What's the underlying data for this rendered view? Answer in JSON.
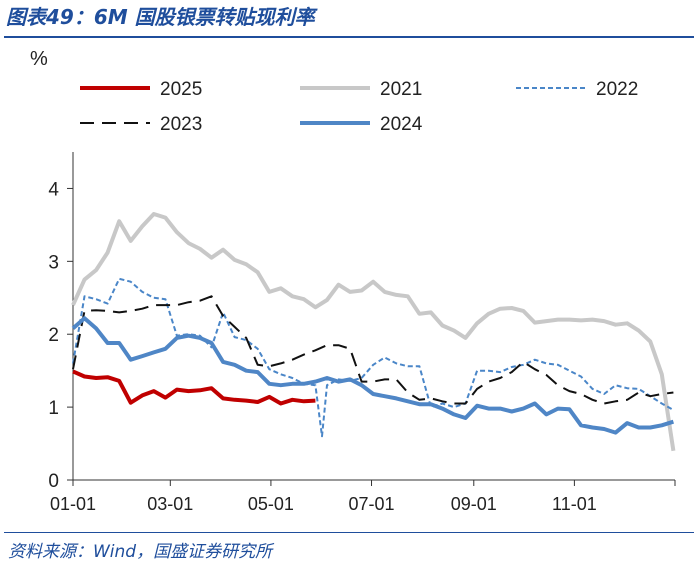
{
  "title": "图表49：6M 国股银票转贴现利率",
  "source": "资料来源：Wind，国盛证券研究所",
  "chart_data": {
    "type": "line",
    "unit": "%",
    "ylim": [
      0,
      4.5
    ],
    "yticks": [
      "0",
      "1",
      "2",
      "3",
      "4"
    ],
    "xticks": [
      "01-01",
      "03-01",
      "05-01",
      "07-01",
      "09-01",
      "11-01"
    ],
    "x_day_range": [
      0,
      365
    ],
    "legend_position": "top",
    "series": [
      {
        "name": "2025",
        "color": "#c00000",
        "dash": "solid",
        "width": 4,
        "x": [
          "01-01",
          "01-08",
          "01-15",
          "01-22",
          "01-29",
          "02-05",
          "02-12",
          "02-19",
          "02-26",
          "03-05",
          "03-12",
          "03-19",
          "03-26",
          "04-02",
          "04-09",
          "04-16",
          "04-23",
          "04-30",
          "05-07",
          "05-14",
          "05-21",
          "05-28"
        ],
        "y": [
          1.49,
          1.42,
          1.4,
          1.41,
          1.36,
          1.06,
          1.16,
          1.22,
          1.13,
          1.24,
          1.22,
          1.23,
          1.26,
          1.12,
          1.1,
          1.09,
          1.07,
          1.14,
          1.05,
          1.1,
          1.08,
          1.09
        ]
      },
      {
        "name": "2021",
        "color": "#c8c8c8",
        "dash": "solid",
        "width": 4,
        "x": [
          "01-01",
          "01-08",
          "01-15",
          "01-22",
          "01-29",
          "02-05",
          "02-12",
          "02-19",
          "02-26",
          "03-05",
          "03-12",
          "03-19",
          "03-26",
          "04-02",
          "04-09",
          "04-16",
          "04-23",
          "04-30",
          "05-07",
          "05-14",
          "05-21",
          "05-28",
          "06-04",
          "06-11",
          "06-18",
          "06-25",
          "07-02",
          "07-09",
          "07-16",
          "07-23",
          "07-30",
          "08-06",
          "08-13",
          "08-20",
          "08-27",
          "09-03",
          "09-10",
          "09-17",
          "09-24",
          "10-01",
          "10-08",
          "10-15",
          "10-22",
          "10-29",
          "11-05",
          "11-12",
          "11-19",
          "11-26",
          "12-03",
          "12-10",
          "12-17",
          "12-24",
          "12-31"
        ],
        "y": [
          2.4,
          2.75,
          2.88,
          3.12,
          3.55,
          3.28,
          3.48,
          3.65,
          3.6,
          3.4,
          3.25,
          3.17,
          3.05,
          3.16,
          3.02,
          2.96,
          2.85,
          2.58,
          2.63,
          2.52,
          2.48,
          2.37,
          2.47,
          2.68,
          2.58,
          2.6,
          2.72,
          2.58,
          2.54,
          2.52,
          2.28,
          2.3,
          2.12,
          2.05,
          1.95,
          2.15,
          2.28,
          2.35,
          2.36,
          2.32,
          2.16,
          2.18,
          2.2,
          2.2,
          2.19,
          2.2,
          2.18,
          2.13,
          2.15,
          2.05,
          1.9,
          1.45,
          0.4
        ]
      },
      {
        "name": "2022",
        "color": "#4a86c8",
        "dash": "dotted",
        "width": 2,
        "x": [
          "01-01",
          "01-08",
          "01-15",
          "01-22",
          "01-29",
          "02-05",
          "02-12",
          "02-19",
          "02-26",
          "03-05",
          "03-12",
          "03-19",
          "03-26",
          "04-02",
          "04-09",
          "04-16",
          "04-23",
          "04-30",
          "05-07",
          "05-14",
          "05-21",
          "05-28",
          "06-01",
          "06-04",
          "06-11",
          "06-18",
          "06-25",
          "07-02",
          "07-09",
          "07-16",
          "07-23",
          "07-30",
          "08-06",
          "08-13",
          "08-20",
          "08-27",
          "09-03",
          "09-10",
          "09-17",
          "09-24",
          "10-01",
          "10-08",
          "10-15",
          "10-22",
          "10-29",
          "11-05",
          "11-12",
          "11-19",
          "11-26",
          "12-03",
          "12-10",
          "12-17",
          "12-24",
          "12-31"
        ],
        "y": [
          1.6,
          2.52,
          2.48,
          2.42,
          2.76,
          2.72,
          2.58,
          2.5,
          2.48,
          1.98,
          2.0,
          1.98,
          1.82,
          2.3,
          1.96,
          1.92,
          1.8,
          1.52,
          1.45,
          1.4,
          1.32,
          1.3,
          0.6,
          1.3,
          1.38,
          1.36,
          1.4,
          1.58,
          1.68,
          1.6,
          1.56,
          1.56,
          1.0,
          1.05,
          1.0,
          1.05,
          1.5,
          1.5,
          1.48,
          1.55,
          1.58,
          1.65,
          1.6,
          1.58,
          1.5,
          1.42,
          1.25,
          1.18,
          1.3,
          1.26,
          1.25,
          1.15,
          1.05,
          0.96
        ]
      },
      {
        "name": "2023",
        "color": "#111111",
        "dash": "dashed",
        "width": 2,
        "x": [
          "01-01",
          "01-08",
          "01-15",
          "01-22",
          "01-29",
          "02-05",
          "02-12",
          "02-19",
          "02-26",
          "03-05",
          "03-12",
          "03-19",
          "03-26",
          "04-02",
          "04-09",
          "04-16",
          "04-23",
          "04-30",
          "05-07",
          "05-14",
          "05-21",
          "05-28",
          "06-04",
          "06-11",
          "06-18",
          "06-25",
          "07-02",
          "07-09",
          "07-16",
          "07-23",
          "07-30",
          "08-06",
          "08-13",
          "08-20",
          "08-27",
          "09-03",
          "09-10",
          "09-17",
          "09-24",
          "10-01",
          "10-08",
          "10-15",
          "10-22",
          "10-29",
          "11-05",
          "11-12",
          "11-19",
          "11-26",
          "12-03",
          "12-10",
          "12-17",
          "12-24",
          "12-31"
        ],
        "y": [
          1.52,
          2.32,
          2.33,
          2.32,
          2.3,
          2.32,
          2.35,
          2.4,
          2.4,
          2.4,
          2.44,
          2.46,
          2.52,
          2.25,
          2.1,
          1.95,
          1.58,
          1.56,
          1.6,
          1.65,
          1.72,
          1.78,
          1.85,
          1.85,
          1.8,
          1.35,
          1.35,
          1.38,
          1.38,
          1.2,
          1.1,
          1.12,
          1.08,
          1.05,
          1.05,
          1.25,
          1.35,
          1.4,
          1.48,
          1.62,
          1.52,
          1.44,
          1.3,
          1.22,
          1.18,
          1.1,
          1.05,
          1.08,
          1.1,
          1.2,
          1.15,
          1.18,
          1.2
        ]
      },
      {
        "name": "2024",
        "color": "#4f86c6",
        "dash": "solid",
        "width": 4,
        "x": [
          "01-01",
          "01-08",
          "01-15",
          "01-22",
          "01-29",
          "02-05",
          "02-12",
          "02-19",
          "02-26",
          "03-05",
          "03-12",
          "03-19",
          "03-26",
          "04-02",
          "04-09",
          "04-16",
          "04-23",
          "04-30",
          "05-07",
          "05-14",
          "05-21",
          "05-28",
          "06-04",
          "06-11",
          "06-18",
          "06-25",
          "07-02",
          "07-09",
          "07-16",
          "07-23",
          "07-30",
          "08-06",
          "08-13",
          "08-20",
          "08-27",
          "09-03",
          "09-10",
          "09-17",
          "09-24",
          "10-01",
          "10-08",
          "10-15",
          "10-22",
          "10-29",
          "11-05",
          "11-12",
          "11-19",
          "11-26",
          "12-03",
          "12-10",
          "12-17",
          "12-24",
          "12-31"
        ],
        "y": [
          2.08,
          2.22,
          2.08,
          1.88,
          1.88,
          1.65,
          1.7,
          1.75,
          1.8,
          1.95,
          1.98,
          1.95,
          1.88,
          1.62,
          1.58,
          1.5,
          1.48,
          1.32,
          1.3,
          1.32,
          1.32,
          1.35,
          1.4,
          1.35,
          1.38,
          1.3,
          1.18,
          1.15,
          1.12,
          1.08,
          1.04,
          1.04,
          0.98,
          0.9,
          0.85,
          1.02,
          0.98,
          0.98,
          0.94,
          0.98,
          1.05,
          0.9,
          0.98,
          0.97,
          0.75,
          0.72,
          0.7,
          0.65,
          0.78,
          0.72,
          0.72,
          0.75,
          0.8
        ]
      }
    ]
  }
}
